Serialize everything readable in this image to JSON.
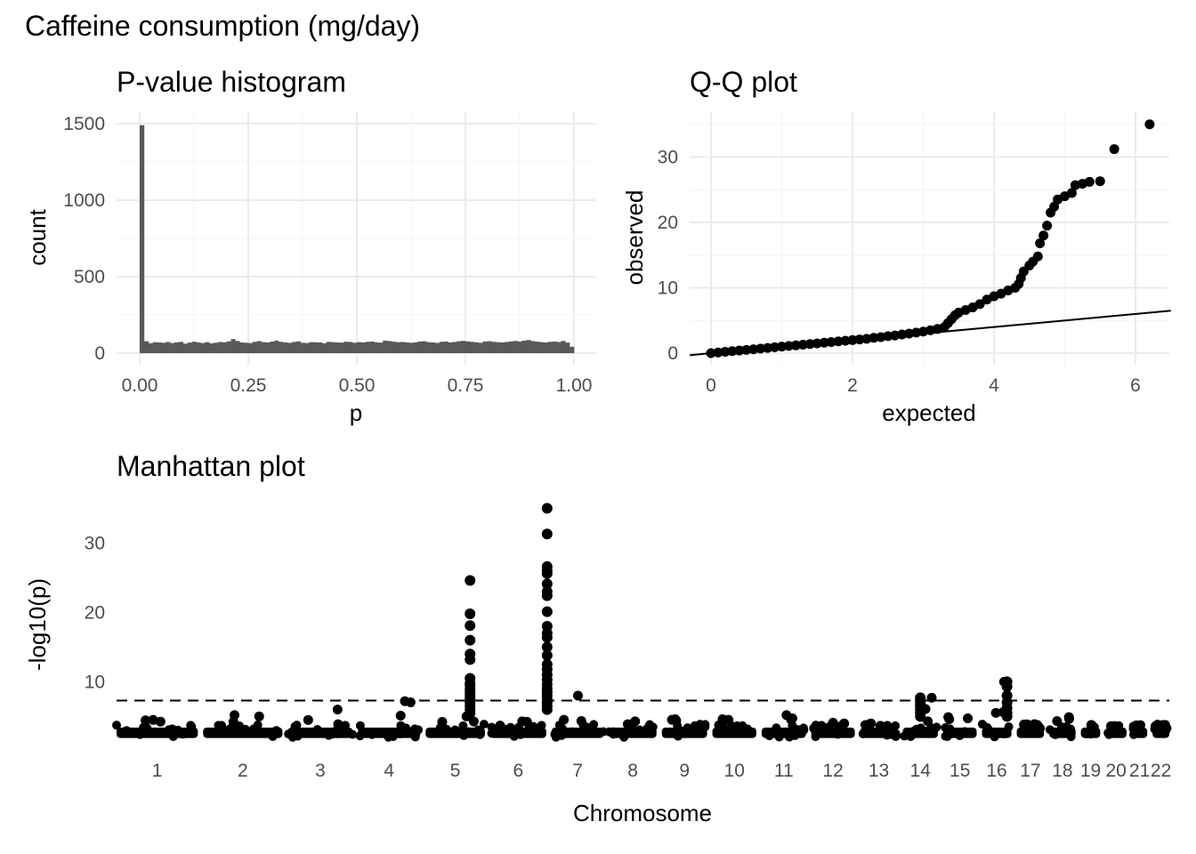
{
  "title": "Caffeine consumption (mg/day)",
  "chart_data": [
    {
      "type": "bar",
      "title": "P-value histogram",
      "xlabel": "p",
      "ylabel": "count",
      "xlim": [
        0,
        1
      ],
      "ylim": [
        0,
        1500
      ],
      "x_ticks": [
        "0.00",
        "0.25",
        "0.50",
        "0.75",
        "1.00"
      ],
      "y_ticks": [
        "0",
        "500",
        "1000",
        "1500"
      ],
      "bin_width": 0.01,
      "bin_start": 0.0,
      "counts": [
        1490,
        78,
        65,
        72,
        70,
        68,
        73,
        66,
        71,
        74,
        62,
        69,
        75,
        70,
        66,
        72,
        64,
        68,
        73,
        71,
        77,
        92,
        80,
        70,
        68,
        66,
        74,
        79,
        72,
        70,
        76,
        82,
        74,
        70,
        67,
        73,
        77,
        68,
        66,
        72,
        71,
        70,
        65,
        74,
        72,
        70,
        69,
        75,
        73,
        68,
        72,
        70,
        74,
        76,
        71,
        69,
        82,
        79,
        75,
        72,
        73,
        70,
        68,
        71,
        76,
        78,
        72,
        70,
        67,
        74,
        76,
        70,
        73,
        78,
        80,
        77,
        74,
        71,
        68,
        76,
        78,
        74,
        72,
        70,
        73,
        77,
        80,
        76,
        82,
        86,
        79,
        75,
        72,
        70,
        74,
        76,
        73,
        80,
        69,
        42
      ],
      "bar_color": "#595959"
    },
    {
      "type": "scatter",
      "title": "Q-Q plot",
      "xlabel": "expected",
      "ylabel": "observed",
      "xlim": [
        -0.3,
        6.5
      ],
      "ylim": [
        -0.3,
        36.5
      ],
      "x_ticks": [
        "0",
        "2",
        "4",
        "6"
      ],
      "y_ticks": [
        "0",
        "10",
        "20",
        "30"
      ],
      "reference_line": {
        "intercept": 0,
        "slope": 1
      },
      "points": [
        [
          0.0,
          0.0
        ],
        [
          0.1,
          0.1
        ],
        [
          0.2,
          0.2
        ],
        [
          0.3,
          0.3
        ],
        [
          0.4,
          0.4
        ],
        [
          0.5,
          0.5
        ],
        [
          0.6,
          0.6
        ],
        [
          0.7,
          0.7
        ],
        [
          0.8,
          0.8
        ],
        [
          0.9,
          0.9
        ],
        [
          1.0,
          1.0
        ],
        [
          1.1,
          1.1
        ],
        [
          1.2,
          1.2
        ],
        [
          1.3,
          1.3
        ],
        [
          1.4,
          1.4
        ],
        [
          1.5,
          1.5
        ],
        [
          1.6,
          1.6
        ],
        [
          1.7,
          1.7
        ],
        [
          1.8,
          1.8
        ],
        [
          1.9,
          1.9
        ],
        [
          2.0,
          2.0
        ],
        [
          2.1,
          2.1
        ],
        [
          2.2,
          2.2
        ],
        [
          2.3,
          2.35
        ],
        [
          2.4,
          2.45
        ],
        [
          2.5,
          2.6
        ],
        [
          2.6,
          2.7
        ],
        [
          2.7,
          2.85
        ],
        [
          2.8,
          3.0
        ],
        [
          2.9,
          3.15
        ],
        [
          3.0,
          3.3
        ],
        [
          3.1,
          3.5
        ],
        [
          3.2,
          3.7
        ],
        [
          3.3,
          4.0
        ],
        [
          3.35,
          4.6
        ],
        [
          3.4,
          5.2
        ],
        [
          3.45,
          5.8
        ],
        [
          3.5,
          6.2
        ],
        [
          3.6,
          6.6
        ],
        [
          3.7,
          7.0
        ],
        [
          3.8,
          7.5
        ],
        [
          3.9,
          8.2
        ],
        [
          4.0,
          8.7
        ],
        [
          4.1,
          9.1
        ],
        [
          4.2,
          9.6
        ],
        [
          4.3,
          10.0
        ],
        [
          4.35,
          10.6
        ],
        [
          4.38,
          11.5
        ],
        [
          4.42,
          12.5
        ],
        [
          4.5,
          13.4
        ],
        [
          4.55,
          14.0
        ],
        [
          4.62,
          14.8
        ],
        [
          4.65,
          16.8
        ],
        [
          4.7,
          18.0
        ],
        [
          4.75,
          19.5
        ],
        [
          4.8,
          21.5
        ],
        [
          4.85,
          22.4
        ],
        [
          4.9,
          23.5
        ],
        [
          5.0,
          24.0
        ],
        [
          5.1,
          24.5
        ],
        [
          5.15,
          25.7
        ],
        [
          5.25,
          25.9
        ],
        [
          5.35,
          26.2
        ],
        [
          5.5,
          26.3
        ],
        [
          5.7,
          31.2
        ],
        [
          6.2,
          35.0
        ]
      ],
      "point_color": "#000000"
    },
    {
      "type": "scatter",
      "title": "Manhattan plot",
      "xlabel": "Chromosome",
      "ylabel": "-log10(p)",
      "ylim": [
        0,
        36.5
      ],
      "y_ticks": [
        "10",
        "20",
        "30"
      ],
      "threshold": 7.3,
      "chromosomes": [
        "1",
        "2",
        "3",
        "4",
        "5",
        "6",
        "7",
        "8",
        "9",
        "10",
        "11",
        "12",
        "13",
        "14",
        "15",
        "16",
        "17",
        "18",
        "19",
        "20",
        "21",
        "22"
      ],
      "chromosome_sizes": [
        248,
        242,
        198,
        190,
        181,
        171,
        159,
        145,
        138,
        134,
        135,
        133,
        114,
        107,
        102,
        90,
        83,
        80,
        59,
        64,
        47,
        51
      ],
      "background_max": [
        4.5,
        5.2,
        6.0,
        7.2,
        5.0,
        4.3,
        8.0,
        4.3,
        4.6,
        4.6,
        5.2,
        4.1,
        4.0,
        7.7,
        4.9,
        10.0,
        3.9,
        4.9,
        3.7,
        3.4,
        3.0,
        3.6
      ],
      "peaks": [
        {
          "chr": "5",
          "values": [
            24.6,
            19.8,
            18.1,
            16.0,
            14.0,
            13.2,
            10.5,
            9.8,
            9.5,
            9.0,
            8.6,
            8.2,
            7.8,
            7.5,
            7.0,
            6.5,
            6.0,
            5.5
          ]
        },
        {
          "chr": "6",
          "values": [
            35.0,
            31.3,
            26.6,
            26.0,
            25.6,
            24.1,
            23.0,
            22.4,
            20.1,
            18.0,
            17.0,
            16.4,
            15.0,
            13.8,
            12.5,
            11.8,
            11.0,
            10.3,
            9.6,
            9.0,
            8.5,
            8.0,
            7.5,
            7.0,
            6.5,
            6.0
          ]
        },
        {
          "chr": "14",
          "values": [
            7.7,
            7.4,
            7.1,
            6.8,
            6.5,
            6.0,
            5.5,
            5.0
          ]
        },
        {
          "chr": "16",
          "values": [
            10.0,
            9.3,
            8.0,
            7.0,
            6.2,
            5.5,
            5.0
          ]
        }
      ],
      "point_color": "#000000"
    }
  ]
}
